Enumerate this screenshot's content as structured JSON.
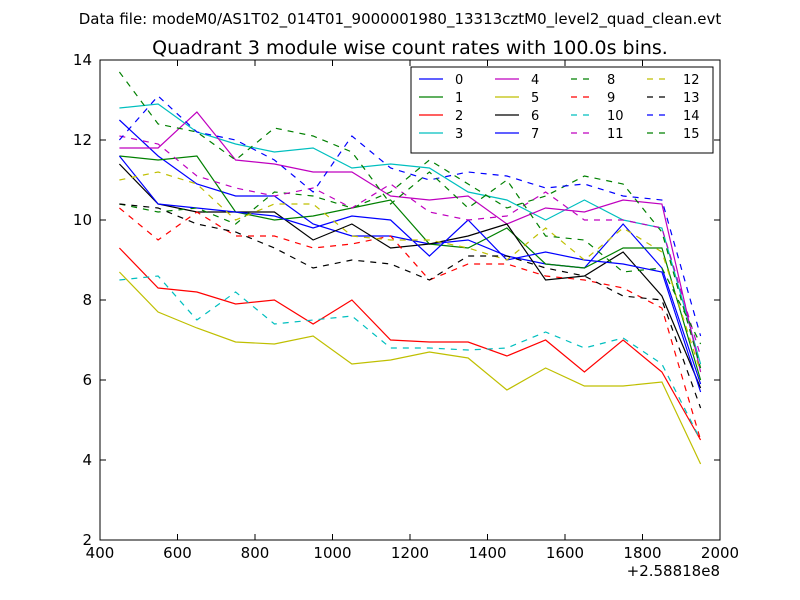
{
  "header": "Data file: modeM0/AS1T02_014T01_9000001980_13313cztM0_level2_quad_clean.evt",
  "chart_data": {
    "type": "line",
    "title": "Quadrant 3 module wise count rates with 100.0s bins.",
    "xlabel": "",
    "ylabel": "",
    "x_offset_label": "+2.58818e8",
    "xlim": [
      400,
      2000
    ],
    "ylim": [
      2,
      14
    ],
    "xticks": [
      400,
      600,
      800,
      1000,
      1200,
      1400,
      1600,
      1800,
      2000
    ],
    "yticks": [
      2,
      4,
      6,
      8,
      10,
      12,
      14
    ],
    "grid": false,
    "legend_position": "top-right",
    "legend_columns": 4,
    "x": [
      450,
      550,
      650,
      750,
      850,
      950,
      1050,
      1150,
      1250,
      1350,
      1450,
      1550,
      1650,
      1750,
      1850,
      1950
    ],
    "series": [
      {
        "name": "0",
        "color": "#0000ff",
        "dash": "solid",
        "values": [
          12.5,
          11.6,
          10.9,
          10.6,
          10.6,
          9.9,
          9.6,
          9.6,
          9.4,
          9.5,
          9.1,
          8.9,
          8.8,
          9.9,
          8.8,
          5.9
        ]
      },
      {
        "name": "1",
        "color": "#008000",
        "dash": "solid",
        "values": [
          11.6,
          11.5,
          11.6,
          10.2,
          10.0,
          10.1,
          10.3,
          10.5,
          9.4,
          9.3,
          9.8,
          8.9,
          8.8,
          9.3,
          9.3,
          6.0
        ]
      },
      {
        "name": "2",
        "color": "#ff0000",
        "dash": "solid",
        "values": [
          9.3,
          8.3,
          8.2,
          7.9,
          8.0,
          7.4,
          8.0,
          7.0,
          6.95,
          6.95,
          6.6,
          7.0,
          6.2,
          7.0,
          6.2,
          4.5
        ]
      },
      {
        "name": "3",
        "color": "#00bfbf",
        "dash": "solid",
        "values": [
          12.8,
          12.9,
          12.2,
          11.9,
          11.7,
          11.8,
          11.3,
          11.4,
          11.3,
          10.7,
          10.5,
          10.0,
          10.5,
          10.0,
          9.8,
          6.4
        ]
      },
      {
        "name": "4",
        "color": "#bf00bf",
        "dash": "solid",
        "values": [
          11.8,
          11.8,
          12.7,
          11.5,
          11.4,
          11.2,
          11.2,
          10.6,
          10.5,
          10.6,
          9.9,
          10.3,
          10.2,
          10.5,
          10.4,
          6.2
        ]
      },
      {
        "name": "5",
        "color": "#bfbf00",
        "dash": "solid",
        "values": [
          8.7,
          7.7,
          7.3,
          6.95,
          6.9,
          7.1,
          6.4,
          6.5,
          6.7,
          6.55,
          5.75,
          6.3,
          5.85,
          5.85,
          5.95,
          3.9
        ]
      },
      {
        "name": "6",
        "color": "#000000",
        "dash": "solid",
        "values": [
          11.4,
          10.4,
          10.2,
          10.2,
          10.2,
          9.5,
          9.9,
          9.3,
          9.4,
          9.6,
          9.9,
          8.5,
          8.6,
          9.2,
          8.1,
          5.8
        ]
      },
      {
        "name": "7",
        "color": "#0000ff",
        "dash": "solid",
        "values": [
          11.6,
          10.4,
          10.3,
          10.2,
          10.1,
          9.8,
          10.1,
          10.0,
          9.1,
          10.0,
          9.0,
          9.2,
          9.0,
          8.9,
          8.7,
          5.7
        ]
      },
      {
        "name": "8",
        "color": "#008000",
        "dash": "dashed",
        "values": [
          10.4,
          10.2,
          10.3,
          9.9,
          10.7,
          10.6,
          10.3,
          10.7,
          11.5,
          10.9,
          10.3,
          10.6,
          11.1,
          10.9,
          9.7,
          6.3
        ]
      },
      {
        "name": "9",
        "color": "#ff0000",
        "dash": "dashed",
        "values": [
          10.3,
          9.5,
          10.2,
          9.6,
          9.6,
          9.3,
          9.4,
          9.6,
          8.5,
          8.9,
          8.9,
          8.6,
          8.5,
          8.3,
          7.8,
          4.5
        ]
      },
      {
        "name": "10",
        "color": "#00bfbf",
        "dash": "dashed",
        "values": [
          8.5,
          8.6,
          7.5,
          8.2,
          7.4,
          7.5,
          7.6,
          6.8,
          6.8,
          6.75,
          6.8,
          7.2,
          6.8,
          7.05,
          6.4,
          4.5
        ]
      },
      {
        "name": "11",
        "color": "#bf00bf",
        "dash": "dashed",
        "values": [
          12.1,
          11.9,
          11.1,
          10.8,
          10.6,
          10.8,
          10.3,
          10.9,
          10.2,
          10.0,
          10.1,
          10.7,
          10.0,
          10.0,
          9.8,
          6.6
        ]
      },
      {
        "name": "12",
        "color": "#bfbf00",
        "dash": "dashed",
        "values": [
          11.0,
          11.2,
          10.9,
          10.0,
          10.4,
          10.4,
          9.6,
          9.5,
          9.5,
          9.3,
          9.0,
          9.8,
          9.0,
          9.8,
          9.2,
          6.2
        ]
      },
      {
        "name": "13",
        "color": "#000000",
        "dash": "dashed",
        "values": [
          10.4,
          10.3,
          9.9,
          9.7,
          9.3,
          8.8,
          9.0,
          8.9,
          8.5,
          9.1,
          9.1,
          8.8,
          8.6,
          8.1,
          8.0,
          5.3
        ]
      },
      {
        "name": "14",
        "color": "#0000ff",
        "dash": "dashed",
        "values": [
          12.0,
          13.1,
          12.2,
          12.0,
          11.5,
          10.7,
          12.1,
          11.3,
          11.0,
          11.2,
          11.1,
          10.8,
          10.9,
          10.6,
          10.5,
          7.1
        ]
      },
      {
        "name": "15",
        "color": "#008000",
        "dash": "dashed",
        "values": [
          13.7,
          12.4,
          12.2,
          11.5,
          12.3,
          12.1,
          11.7,
          10.4,
          11.2,
          10.3,
          11.0,
          9.6,
          9.5,
          8.7,
          8.8,
          6.9
        ]
      }
    ]
  }
}
